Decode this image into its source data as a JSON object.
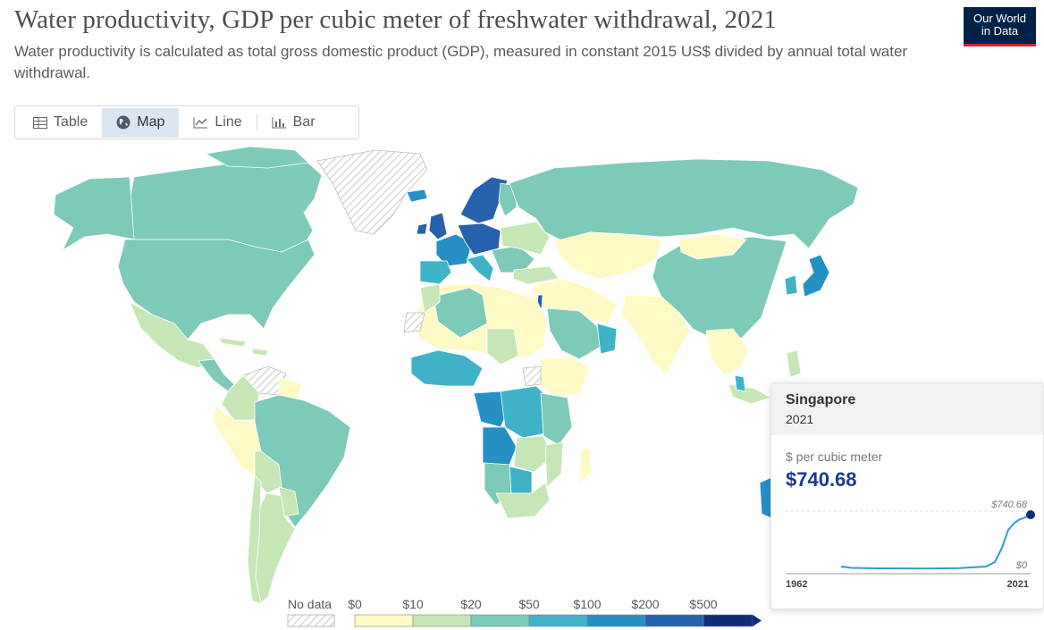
{
  "title": "Water productivity, GDP per cubic meter of freshwater withdrawal, 2021",
  "subtitle": "Water productivity is calculated as total gross domestic product (GDP), measured in constant 2015 US$ divided by annual total water withdrawal.",
  "logo": {
    "line1": "Our World",
    "line2": "in Data"
  },
  "tabs": [
    {
      "label": "Table",
      "icon": "table-icon"
    },
    {
      "label": "Map",
      "icon": "globe-icon",
      "active": true
    },
    {
      "label": "Line",
      "icon": "line-chart-icon"
    },
    {
      "label": "Bar",
      "icon": "bar-chart-icon"
    }
  ],
  "legend": {
    "no_data_label": "No data",
    "bins": [
      "$0",
      "$10",
      "$20",
      "$50",
      "$100",
      "$200",
      "$500"
    ],
    "colors": [
      "#fdfac6",
      "#c6e7b5",
      "#7dcab9",
      "#40b2c8",
      "#2490c4",
      "#2561ad",
      "#0e2c78"
    ]
  },
  "tooltip": {
    "country": "Singapore",
    "year": "2021",
    "unit": "$ per cubic meter",
    "value": "$740.68",
    "spark_max_label": "$740.68",
    "spark_min_label": "$0",
    "spark_start": "1962",
    "spark_end": "2021",
    "series_color": "#2c9ec8"
  }
}
